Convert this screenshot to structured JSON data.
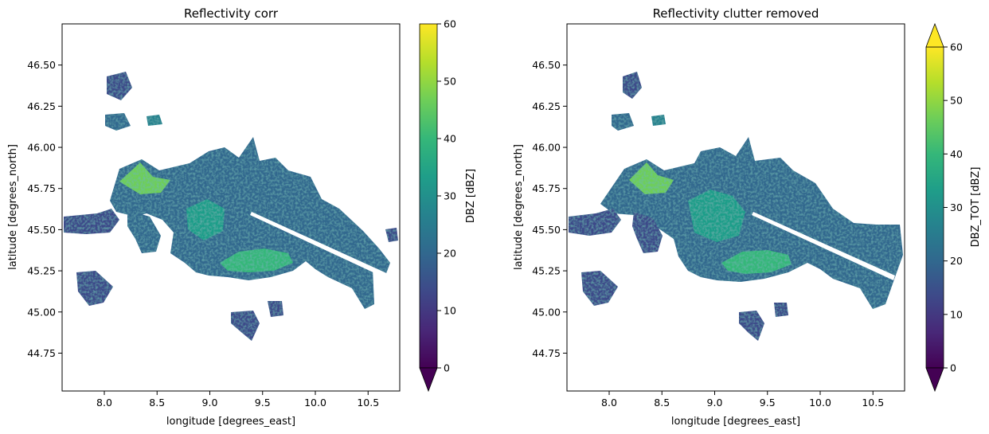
{
  "chart_data": [
    {
      "type": "heatmap",
      "title": "Reflectivity corr",
      "xlabel": "longitude [degrees_east]",
      "ylabel": "latitude [degrees_north]",
      "xlim": [
        7.6,
        10.8
      ],
      "ylim": [
        44.52,
        46.75
      ],
      "xticks": [
        8.0,
        8.5,
        9.0,
        9.5,
        10.0,
        10.5
      ],
      "yticks": [
        44.75,
        45.0,
        45.25,
        45.5,
        45.75,
        46.0,
        46.25,
        46.5
      ],
      "colorbar": {
        "label": "DBZ [dBZ]",
        "min": 0,
        "max": 60,
        "ticks": [
          0,
          10,
          20,
          30,
          40,
          50,
          60
        ],
        "extend": "min",
        "colormap": "viridis"
      },
      "grid": false
    },
    {
      "type": "heatmap",
      "title": "Reflectivity clutter removed",
      "xlabel": "longitude [degrees_east]",
      "ylabel": "latitude [degrees_north]",
      "xlim": [
        7.6,
        10.8
      ],
      "ylim": [
        44.52,
        46.75
      ],
      "xticks": [
        8.0,
        8.5,
        9.0,
        9.5,
        10.0,
        10.5
      ],
      "yticks": [
        44.75,
        45.0,
        45.25,
        45.5,
        45.75,
        46.0,
        46.25,
        46.5
      ],
      "colorbar": {
        "label": "DBZ_TOT [dBZ]",
        "min": 0,
        "max": 60,
        "ticks": [
          0,
          10,
          20,
          30,
          40,
          50,
          60
        ],
        "extend": "both",
        "colormap": "viridis"
      },
      "grid": false
    }
  ],
  "viridis": [
    "#440154",
    "#482878",
    "#3e4989",
    "#31688e",
    "#26828e",
    "#1f9e89",
    "#35b779",
    "#6ece58",
    "#b5de2b",
    "#fde725"
  ]
}
